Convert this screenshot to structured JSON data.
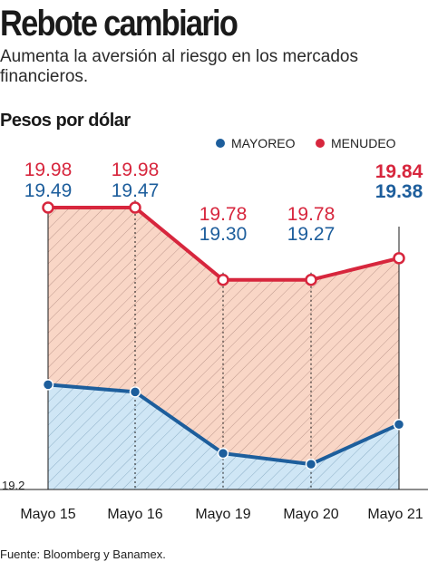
{
  "header": {
    "title": "Rebote cambiario",
    "subtitle": "Aumenta la aversión al riesgo en los mercados financieros.",
    "unit_label": "Pesos por dólar"
  },
  "legend": [
    {
      "label": "MAYOREO",
      "color": "#1d5e9c"
    },
    {
      "label": "MENUDEO",
      "color": "#d7263d"
    }
  ],
  "footer": {
    "source": "Fuente: Bloomberg y Banamex."
  },
  "chart_data": {
    "type": "area",
    "categories": [
      "Mayo 15",
      "Mayo 16",
      "Mayo 19",
      "Mayo 20",
      "Mayo 21"
    ],
    "series": [
      {
        "name": "MENUDEO",
        "color": "#d7263d",
        "fill": "#f9d6c6",
        "values": [
          19.98,
          19.98,
          19.78,
          19.78,
          19.84
        ],
        "labels": [
          "19.98",
          "19.98",
          "19.78",
          "19.78",
          "19.84"
        ]
      },
      {
        "name": "MAYOREO",
        "color": "#1d5e9c",
        "fill": "#cfe6f5",
        "values": [
          19.49,
          19.47,
          19.3,
          19.27,
          19.38
        ],
        "labels": [
          "19.49",
          "19.47",
          "19.30",
          "19.27",
          "19.38"
        ]
      }
    ],
    "y_axis_min_label": "19.2",
    "ylim": [
      19.2,
      19.98
    ],
    "grid": false
  }
}
